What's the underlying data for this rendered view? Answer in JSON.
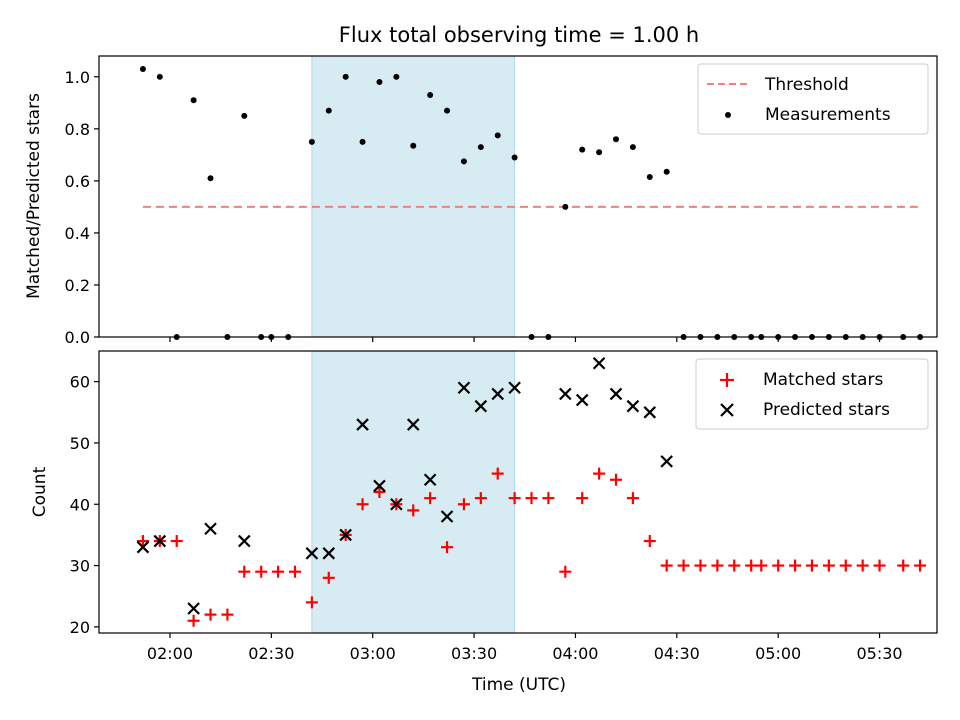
{
  "chart_data": [
    {
      "type": "scatter",
      "panel": "top",
      "title": "Flux total observing time = 1.00 h",
      "xlabel": "",
      "ylabel": "Matched/Predicted stars",
      "xlim": [
        "01:39",
        "05:47"
      ],
      "ylim": [
        0,
        1.08
      ],
      "yticks": [
        0.0,
        0.2,
        0.4,
        0.6,
        0.8,
        1.0
      ],
      "ytick_labels": [
        "0.0",
        "0.2",
        "0.4",
        "0.6",
        "0.8",
        "1.0"
      ],
      "xticks": [
        "02:00",
        "02:30",
        "03:00",
        "03:30",
        "04:00",
        "04:30",
        "05:00",
        "05:30"
      ],
      "xtick_labels_shown": false,
      "shaded_interval": {
        "start": "02:42",
        "end": "03:42",
        "color": "#add8e6"
      },
      "legend": "top-right",
      "series": [
        {
          "name": "Threshold",
          "kind": "line",
          "style": "dashed",
          "color": "#f08080",
          "x": [
            "01:52",
            "05:42"
          ],
          "y": [
            0.5,
            0.5
          ]
        },
        {
          "name": "Measurements",
          "kind": "scatter",
          "marker": "dot",
          "color": "#000000",
          "x": [
            "01:52",
            "01:57",
            "02:02",
            "02:07",
            "02:12",
            "02:17",
            "02:22",
            "02:27",
            "02:30",
            "02:35",
            "02:42",
            "02:47",
            "02:52",
            "02:57",
            "03:02",
            "03:07",
            "03:12",
            "03:17",
            "03:22",
            "03:27",
            "03:32",
            "03:37",
            "03:42",
            "03:47",
            "03:52",
            "03:57",
            "04:02",
            "04:07",
            "04:12",
            "04:17",
            "04:22",
            "04:27",
            "04:32",
            "04:37",
            "04:42",
            "04:47",
            "04:52",
            "04:55",
            "05:00",
            "05:05",
            "05:10",
            "05:15",
            "05:20",
            "05:25",
            "05:30",
            "05:37",
            "05:42"
          ],
          "y": [
            1.03,
            1.0,
            0,
            0.91,
            0.61,
            0,
            0.85,
            0,
            0,
            0,
            0.75,
            0.87,
            1.0,
            0.75,
            0.98,
            1.0,
            0.735,
            0.93,
            0.87,
            0.675,
            0.73,
            0.775,
            0.69,
            0,
            0,
            0.5,
            0.72,
            0.71,
            0.76,
            0.73,
            0.615,
            0.635,
            0,
            0,
            0,
            0,
            0,
            0,
            0,
            0,
            0,
            0,
            0,
            0,
            0,
            0,
            0
          ]
        }
      ]
    },
    {
      "type": "scatter",
      "panel": "bottom",
      "title": "",
      "xlabel": "Time (UTC)",
      "ylabel": "Count",
      "xlim": [
        "01:39",
        "05:47"
      ],
      "ylim": [
        19,
        65
      ],
      "yticks": [
        20,
        30,
        40,
        50,
        60
      ],
      "ytick_labels": [
        "20",
        "30",
        "40",
        "50",
        "60"
      ],
      "xticks": [
        "02:00",
        "02:30",
        "03:00",
        "03:30",
        "04:00",
        "04:30",
        "05:00",
        "05:30"
      ],
      "xtick_labels": [
        "02:00",
        "02:30",
        "03:00",
        "03:30",
        "04:00",
        "04:30",
        "05:00",
        "05:30"
      ],
      "shaded_interval": {
        "start": "02:42",
        "end": "03:42",
        "color": "#add8e6"
      },
      "legend": "top-right",
      "series": [
        {
          "name": "Matched stars",
          "kind": "scatter",
          "marker": "plus",
          "color": "#ff0000",
          "x": [
            "01:52",
            "01:57",
            "02:02",
            "02:07",
            "02:12",
            "02:17",
            "02:22",
            "02:27",
            "02:32",
            "02:37",
            "02:42",
            "02:47",
            "02:52",
            "02:57",
            "03:02",
            "03:07",
            "03:12",
            "03:17",
            "03:22",
            "03:27",
            "03:32",
            "03:37",
            "03:42",
            "03:47",
            "03:52",
            "03:57",
            "04:02",
            "04:07",
            "04:12",
            "04:17",
            "04:22",
            "04:27",
            "04:32",
            "04:37",
            "04:42",
            "04:47",
            "04:52",
            "04:55",
            "05:00",
            "05:05",
            "05:10",
            "05:15",
            "05:20",
            "05:25",
            "05:30",
            "05:37",
            "05:42"
          ],
          "y": [
            34,
            34,
            34,
            21,
            22,
            22,
            29,
            29,
            29,
            29,
            24,
            28,
            35,
            40,
            42,
            40,
            39,
            41,
            33,
            40,
            41,
            45,
            41,
            41,
            41,
            29,
            41,
            45,
            44,
            41,
            34,
            30,
            30,
            30,
            30,
            30,
            30,
            30,
            30,
            30,
            30,
            30,
            30,
            30,
            30,
            30,
            30
          ]
        },
        {
          "name": "Predicted stars",
          "kind": "scatter",
          "marker": "x",
          "color": "#000000",
          "x": [
            "01:52",
            "01:57",
            "02:07",
            "02:12",
            "02:22",
            "02:42",
            "02:47",
            "02:52",
            "02:57",
            "03:02",
            "03:07",
            "03:12",
            "03:17",
            "03:22",
            "03:27",
            "03:32",
            "03:37",
            "03:42",
            "03:57",
            "04:02",
            "04:07",
            "04:12",
            "04:17",
            "04:22",
            "04:27"
          ],
          "y": [
            33,
            34,
            23,
            36,
            34,
            32,
            32,
            35,
            53,
            43,
            40,
            53,
            44,
            38,
            59,
            56,
            58,
            59,
            58,
            57,
            63,
            58,
            56,
            55,
            47
          ]
        }
      ]
    }
  ]
}
